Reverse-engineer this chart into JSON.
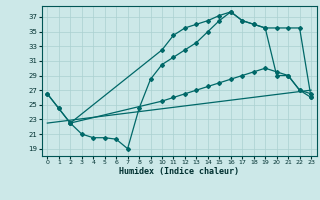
{
  "xlabel": "Humidex (Indice chaleur)",
  "ylabel_ticks": [
    19,
    21,
    23,
    25,
    27,
    29,
    31,
    33,
    35,
    37
  ],
  "xlabel_ticks": [
    0,
    1,
    2,
    3,
    4,
    5,
    6,
    7,
    8,
    9,
    10,
    11,
    12,
    13,
    14,
    15,
    16,
    17,
    18,
    19,
    20,
    21,
    22,
    23
  ],
  "xlim": [
    -0.5,
    23.5
  ],
  "ylim": [
    18.0,
    38.5
  ],
  "bg_color": "#cce8e8",
  "grid_color": "#aad0d0",
  "line_color": "#006868",
  "line1_x": [
    0,
    1,
    2,
    10,
    11,
    12,
    13,
    14,
    15,
    16,
    17,
    18,
    19,
    20,
    21,
    22,
    23
  ],
  "line1_y": [
    26.5,
    24.5,
    22.5,
    32.5,
    34.5,
    35.5,
    36.0,
    36.5,
    37.2,
    37.7,
    36.5,
    36.0,
    35.5,
    35.5,
    35.5,
    35.5,
    26.0
  ],
  "line2_x": [
    0,
    1,
    2,
    3,
    4,
    5,
    6,
    7,
    8,
    9,
    10,
    11,
    12,
    13,
    14,
    15,
    16,
    17,
    18,
    19,
    20,
    21,
    22,
    23
  ],
  "line2_y": [
    26.5,
    24.5,
    22.5,
    21.0,
    20.5,
    20.5,
    20.3,
    19.0,
    24.5,
    28.5,
    30.5,
    31.5,
    32.5,
    33.5,
    35.0,
    36.5,
    37.7,
    36.5,
    36.0,
    35.5,
    29.0,
    29.0,
    27.0,
    26.0
  ],
  "line3_x": [
    0,
    23
  ],
  "line3_y": [
    22.5,
    27.0
  ],
  "line4_x": [
    2,
    10,
    11,
    12,
    13,
    14,
    15,
    16,
    17,
    18,
    19,
    20,
    21,
    22,
    23
  ],
  "line4_y": [
    22.5,
    25.5,
    26.0,
    26.5,
    27.0,
    27.5,
    28.0,
    28.5,
    29.0,
    29.5,
    30.0,
    29.5,
    29.0,
    27.0,
    26.5
  ]
}
